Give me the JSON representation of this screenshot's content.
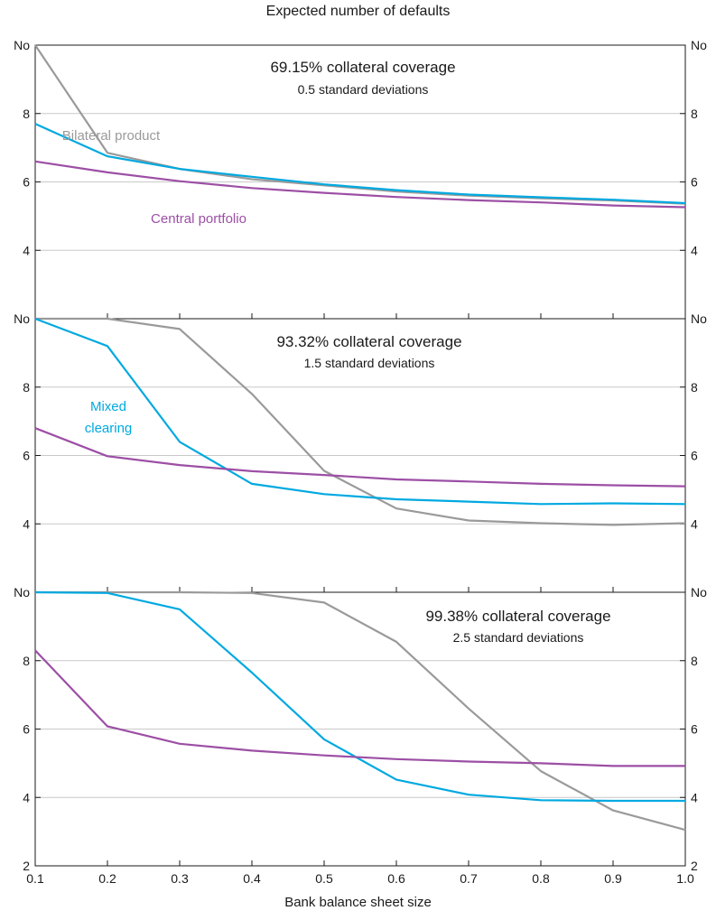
{
  "heading": "Expected number of defaults",
  "chart_data": {
    "type": "line",
    "xlabel": "Bank balance sheet size",
    "x": [
      0.1,
      0.2,
      0.3,
      0.4,
      0.5,
      0.6,
      0.7,
      0.8,
      0.9,
      1.0
    ],
    "x_tick_labels": [
      "0.1",
      "0.2",
      "0.3",
      "0.4",
      "0.5",
      "0.6",
      "0.7",
      "0.8",
      "0.9",
      "1.0"
    ],
    "xlim": [
      0.1,
      1.0
    ],
    "grid": true,
    "colors": {
      "bilateral": "#9a9a9a",
      "mixed": "#00a9e0",
      "central": "#9c4fa5"
    },
    "panels": [
      {
        "title": "69.15% collateral coverage",
        "subtitle": "0.5 standard deviations",
        "ylim": [
          2,
          10
        ],
        "y_ticks": [
          4,
          6,
          8,
          10
        ],
        "y_tick_labels": [
          "4",
          "6",
          "8",
          "No"
        ],
        "series": [
          {
            "key": "bilateral",
            "values": [
              10.0,
              6.85,
              6.38,
              6.08,
              5.9,
              5.72,
              5.6,
              5.52,
              5.46,
              5.36
            ]
          },
          {
            "key": "mixed",
            "values": [
              7.7,
              6.75,
              6.38,
              6.15,
              5.93,
              5.76,
              5.63,
              5.55,
              5.48,
              5.38
            ]
          },
          {
            "key": "central",
            "values": [
              6.6,
              6.28,
              6.02,
              5.82,
              5.68,
              5.56,
              5.47,
              5.4,
              5.31,
              5.26
            ]
          }
        ],
        "annotations": [
          {
            "text": "Bilateral product",
            "key": "bilateral"
          },
          {
            "text": "Central portfolio",
            "key": "central"
          }
        ]
      },
      {
        "title": "93.32% collateral coverage",
        "subtitle": "1.5 standard deviations",
        "ylim": [
          2,
          10
        ],
        "y_ticks": [
          4,
          6,
          8,
          10
        ],
        "y_tick_labels": [
          "4",
          "6",
          "8",
          "No"
        ],
        "series": [
          {
            "key": "bilateral",
            "values": [
              10.0,
              10.0,
              9.7,
              7.8,
              5.55,
              4.45,
              4.1,
              4.02,
              3.97,
              4.02
            ]
          },
          {
            "key": "mixed",
            "values": [
              10.0,
              9.2,
              6.4,
              5.17,
              4.87,
              4.72,
              4.65,
              4.58,
              4.6,
              4.58
            ]
          },
          {
            "key": "central",
            "values": [
              6.8,
              5.98,
              5.72,
              5.54,
              5.43,
              5.3,
              5.24,
              5.17,
              5.13,
              5.1
            ]
          }
        ],
        "annotations": [
          {
            "text": "Mixed clearing",
            "lines": [
              "Mixed",
              "clearing"
            ],
            "key": "mixed"
          }
        ]
      },
      {
        "title": "99.38% collateral coverage",
        "subtitle": "2.5 standard deviations",
        "ylim": [
          2,
          10
        ],
        "y_ticks": [
          2,
          4,
          6,
          8,
          10
        ],
        "y_tick_labels": [
          "2",
          "4",
          "6",
          "8",
          "No"
        ],
        "series": [
          {
            "key": "bilateral",
            "values": [
              10.0,
              10.0,
              10.0,
              9.98,
              9.7,
              8.55,
              6.6,
              4.77,
              3.62,
              3.05
            ]
          },
          {
            "key": "mixed",
            "values": [
              10.0,
              9.98,
              9.5,
              7.65,
              5.7,
              4.52,
              4.08,
              3.92,
              3.9,
              3.9
            ]
          },
          {
            "key": "central",
            "values": [
              8.3,
              6.08,
              5.57,
              5.37,
              5.23,
              5.12,
              5.05,
              5.0,
              4.92,
              4.92
            ]
          }
        ],
        "annotations": []
      }
    ]
  }
}
